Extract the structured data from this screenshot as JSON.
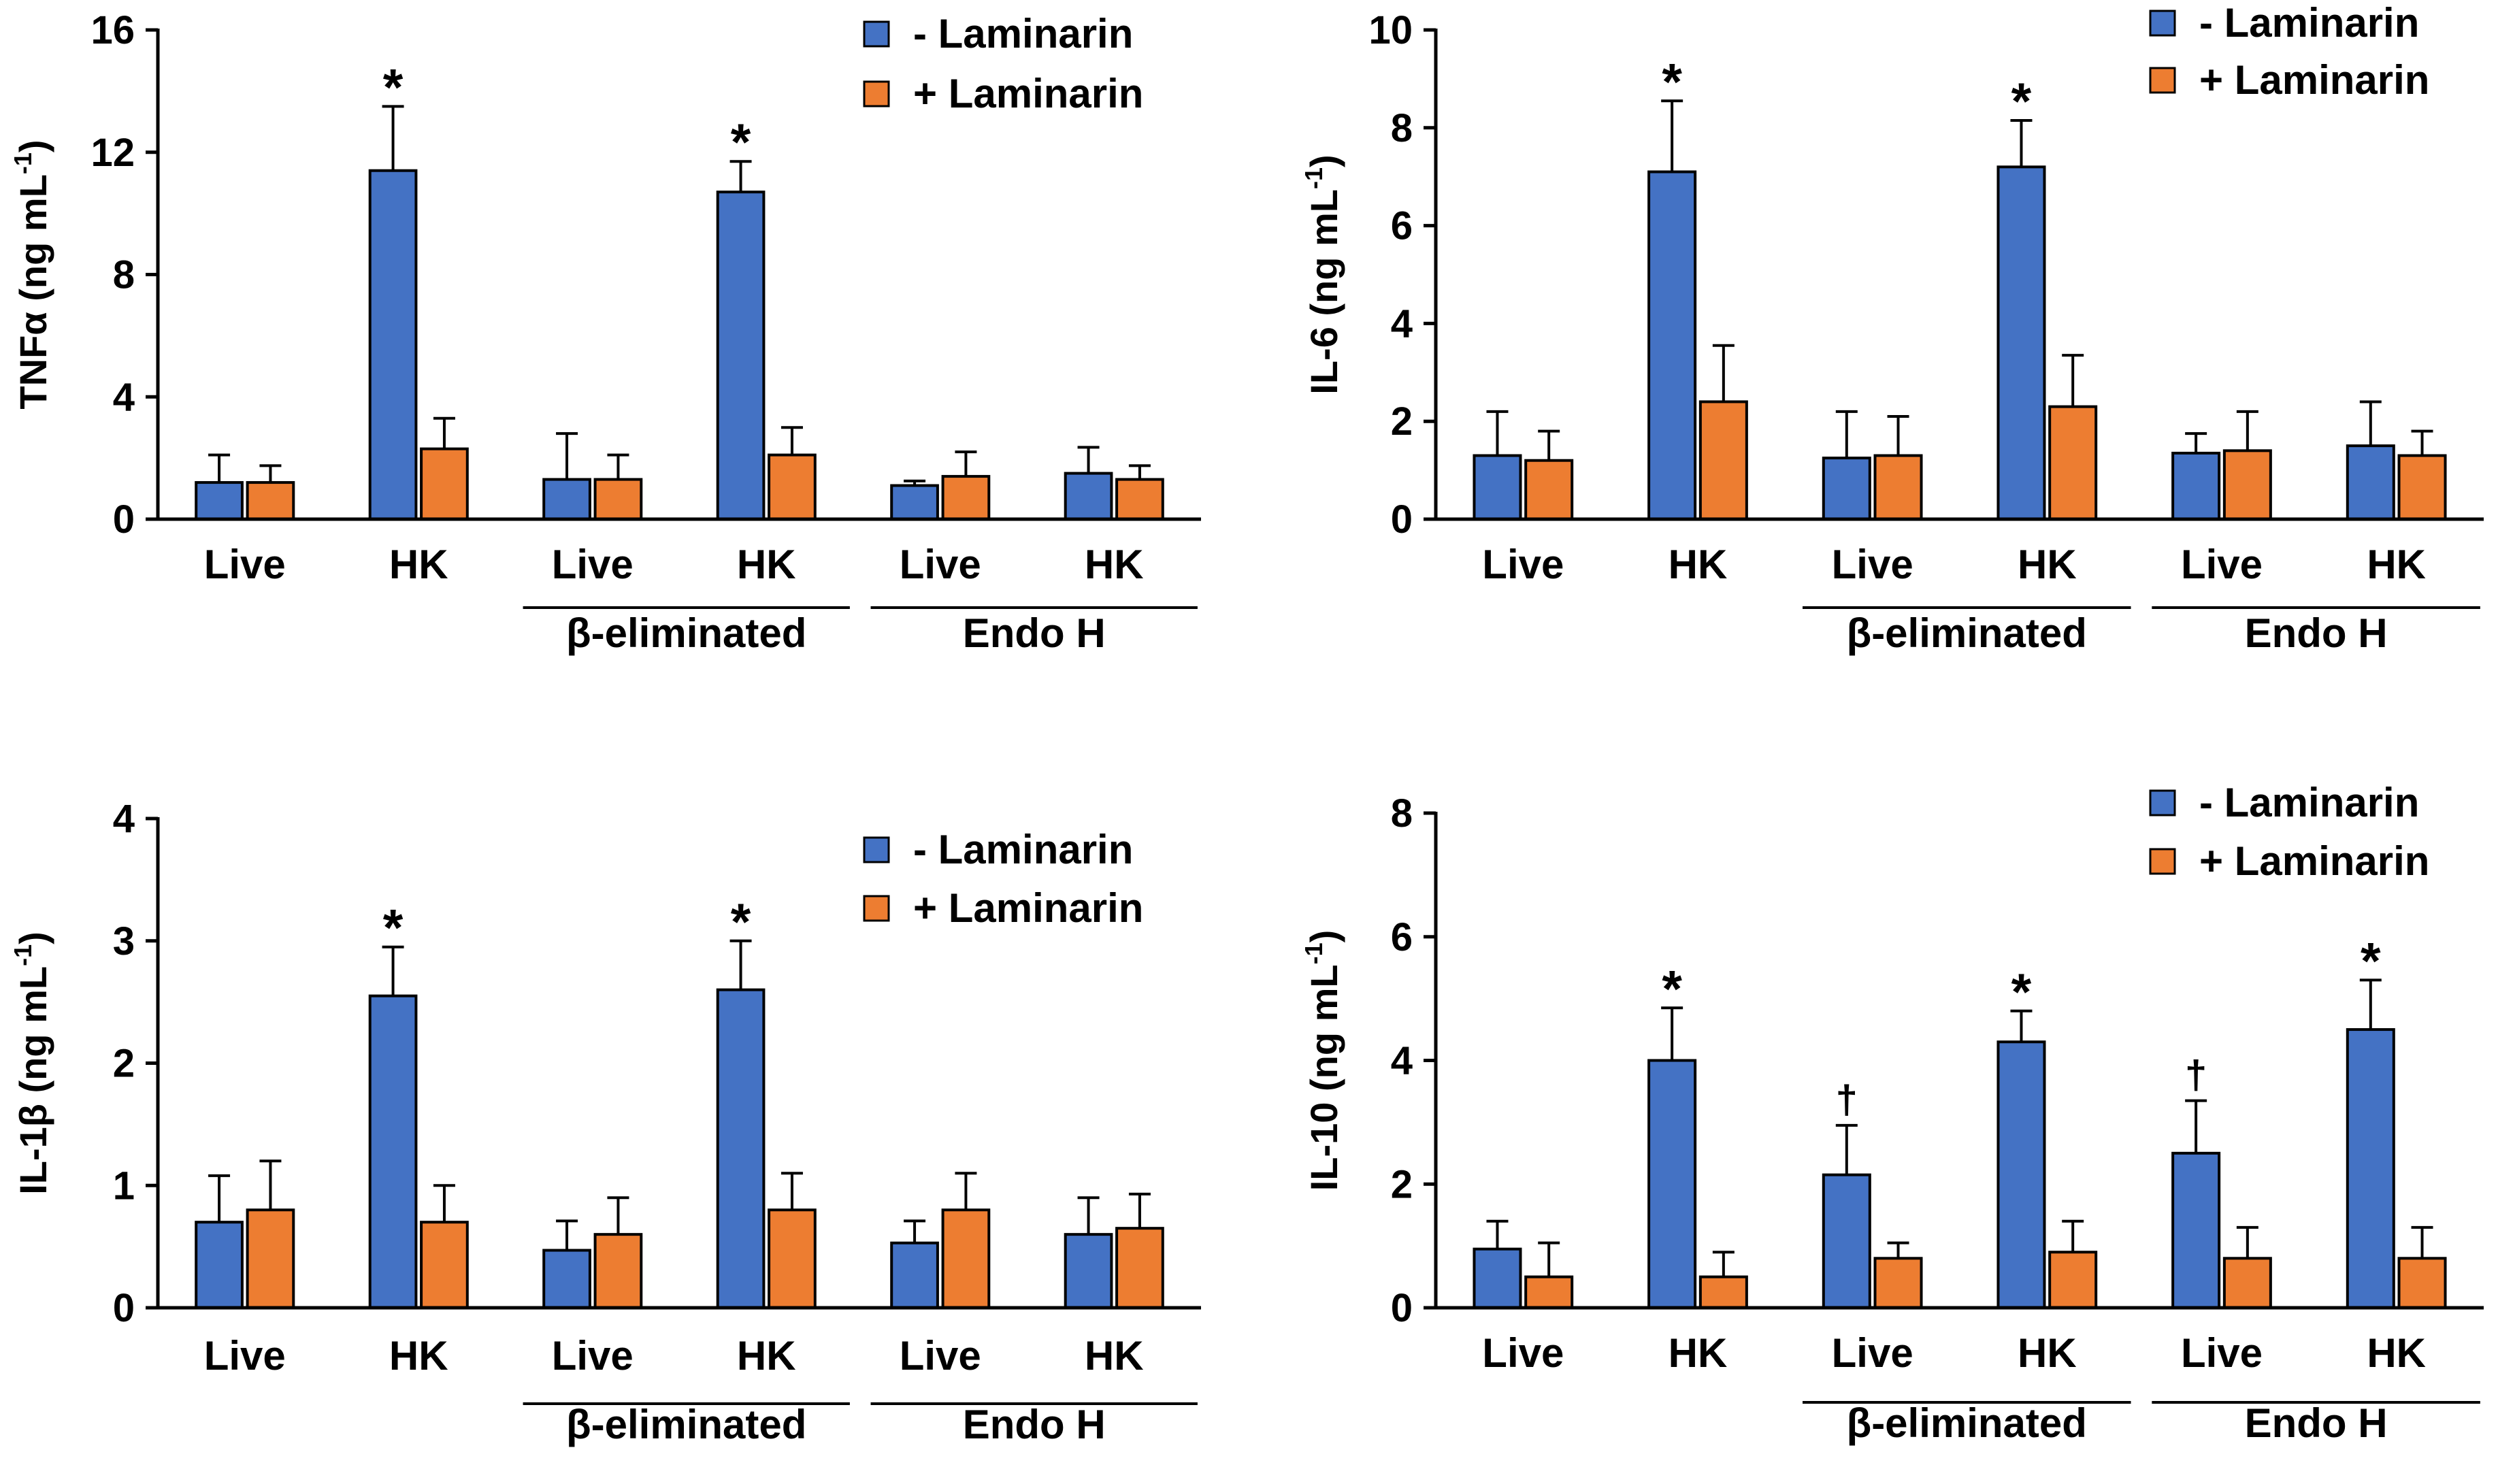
{
  "colors": {
    "minus": "#4472C4",
    "plus": "#ED7D31",
    "axis": "#000000"
  },
  "legend": {
    "minus": "- Laminarin",
    "plus": "+ Laminarin"
  },
  "group_labels": {
    "beta": "β-eliminated",
    "endo": "Endo H"
  },
  "chart_data": [
    {
      "type": "bar",
      "ylabel": "TNFα (ng mL",
      "ylabel_sup": "-1",
      "ylabel_tail": ")",
      "ylim": [
        0,
        16
      ],
      "yticks": [
        "0",
        "4",
        "8",
        "12",
        "16"
      ],
      "categories": [
        "Live",
        "HK",
        "Live",
        "HK",
        "Live",
        "HK"
      ],
      "series": [
        {
          "name": "- Laminarin",
          "values": [
            1.2,
            11.4,
            1.3,
            10.7,
            1.1,
            1.5
          ],
          "errors": [
            0.9,
            2.1,
            1.5,
            1.0,
            0.15,
            0.85
          ]
        },
        {
          "name": "+ Laminarin",
          "values": [
            1.2,
            2.3,
            1.3,
            2.1,
            1.4,
            1.3
          ],
          "errors": [
            0.55,
            1.0,
            0.8,
            0.9,
            0.8,
            0.45
          ]
        }
      ],
      "annotations": [
        {
          "label": "*",
          "series": 0,
          "index": 1
        },
        {
          "label": "*",
          "series": 0,
          "index": 3
        }
      ]
    },
    {
      "type": "bar",
      "ylabel": "IL-6 (ng mL",
      "ylabel_sup": "-1",
      "ylabel_tail": ")",
      "ylim": [
        0,
        10
      ],
      "yticks": [
        "0",
        "2",
        "4",
        "6",
        "8",
        "10"
      ],
      "categories": [
        "Live",
        "HK",
        "Live",
        "HK",
        "Live",
        "HK"
      ],
      "series": [
        {
          "name": "- Laminarin",
          "values": [
            1.3,
            7.1,
            1.25,
            7.2,
            1.35,
            1.5
          ],
          "errors": [
            0.9,
            1.45,
            0.95,
            0.95,
            0.4,
            0.9
          ]
        },
        {
          "name": "+ Laminarin",
          "values": [
            1.2,
            2.4,
            1.3,
            2.3,
            1.4,
            1.3
          ],
          "errors": [
            0.6,
            1.15,
            0.8,
            1.05,
            0.8,
            0.5
          ]
        }
      ],
      "annotations": [
        {
          "label": "*",
          "series": 0,
          "index": 1
        },
        {
          "label": "*",
          "series": 0,
          "index": 3
        }
      ]
    },
    {
      "type": "bar",
      "ylabel": "IL-1β (ng mL",
      "ylabel_sup": "-1",
      "ylabel_tail": ")",
      "ylim": [
        0,
        4
      ],
      "yticks": [
        "0",
        "1",
        "2",
        "3",
        "4"
      ],
      "categories": [
        "Live",
        "HK",
        "Live",
        "HK",
        "Live",
        "HK"
      ],
      "series": [
        {
          "name": "- Laminarin",
          "values": [
            0.7,
            2.55,
            0.47,
            2.6,
            0.53,
            0.6
          ],
          "errors": [
            0.38,
            0.4,
            0.24,
            0.4,
            0.18,
            0.3
          ]
        },
        {
          "name": "+ Laminarin",
          "values": [
            0.8,
            0.7,
            0.6,
            0.8,
            0.8,
            0.65
          ],
          "errors": [
            0.4,
            0.3,
            0.3,
            0.3,
            0.3,
            0.28
          ]
        }
      ],
      "annotations": [
        {
          "label": "*",
          "series": 0,
          "index": 1
        },
        {
          "label": "*",
          "series": 0,
          "index": 3
        }
      ]
    },
    {
      "type": "bar",
      "ylabel": "IL-10 (ng mL",
      "ylabel_sup": "-1",
      "ylabel_tail": ")",
      "ylim": [
        0,
        8
      ],
      "yticks": [
        "0",
        "2",
        "4",
        "6",
        "8"
      ],
      "categories": [
        "Live",
        "HK",
        "Live",
        "HK",
        "Live",
        "HK"
      ],
      "series": [
        {
          "name": "- Laminarin",
          "values": [
            0.95,
            4.0,
            2.15,
            4.3,
            2.5,
            4.5
          ],
          "errors": [
            0.45,
            0.85,
            0.8,
            0.5,
            0.85,
            0.8
          ]
        },
        {
          "name": "+ Laminarin",
          "values": [
            0.5,
            0.5,
            0.8,
            0.9,
            0.8,
            0.8
          ],
          "errors": [
            0.55,
            0.4,
            0.25,
            0.5,
            0.5,
            0.5
          ]
        }
      ],
      "annotations": [
        {
          "label": "*",
          "series": 0,
          "index": 1
        },
        {
          "label": "†",
          "series": 0,
          "index": 2
        },
        {
          "label": "*",
          "series": 0,
          "index": 3
        },
        {
          "label": "†",
          "series": 0,
          "index": 4
        },
        {
          "label": "*",
          "series": 0,
          "index": 5
        }
      ]
    }
  ]
}
